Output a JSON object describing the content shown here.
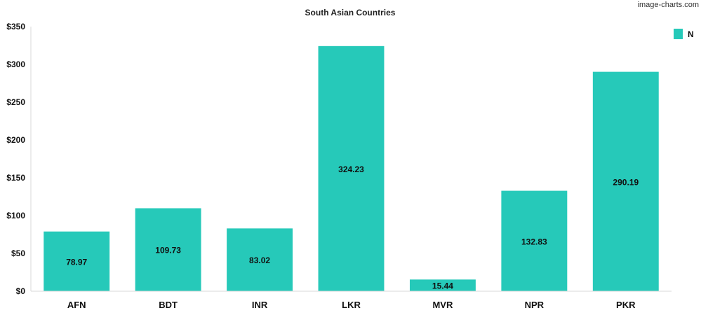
{
  "watermark": "image-charts.com",
  "colors": {
    "bar": "#26c9b9",
    "axis": "#d9d9d9"
  },
  "chart_data": {
    "type": "bar",
    "title": "South Asian Countries",
    "categories": [
      "AFN",
      "BDT",
      "INR",
      "LKR",
      "MVR",
      "NPR",
      "PKR"
    ],
    "series": [
      {
        "name": "N",
        "values": [
          78.97,
          109.73,
          83.02,
          324.23,
          15.44,
          132.83,
          290.19
        ]
      }
    ],
    "data_labels": [
      "78.97",
      "109.73",
      "83.02",
      "324.23",
      "15.44",
      "132.83",
      "290.19"
    ],
    "y_ticks": [
      "$0",
      "$50",
      "$100",
      "$150",
      "$200",
      "$250",
      "$300",
      "$350"
    ],
    "ylim": [
      0,
      350
    ],
    "grid": false,
    "legend": "top-right"
  }
}
